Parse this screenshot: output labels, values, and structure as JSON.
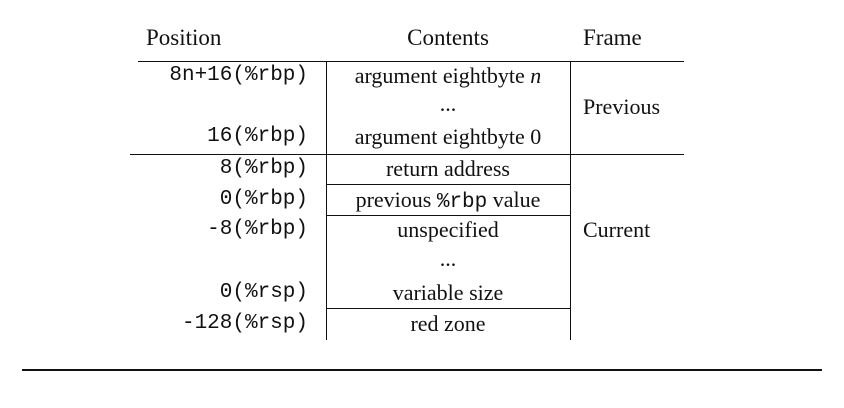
{
  "table": {
    "headers": {
      "position": "Position",
      "contents": "Contents",
      "frame": "Frame"
    },
    "previous_frame": {
      "label": "Previous",
      "rows": [
        {
          "position": "8n+16(%rbp)",
          "contents_text": "argument eightbyte ",
          "contents_var": "n"
        },
        {
          "position": "",
          "contents_text": "...",
          "contents_var": ""
        },
        {
          "position": "16(%rbp)",
          "contents_text": "argument eightbyte ",
          "contents_var": "0"
        }
      ]
    },
    "current_frame": {
      "label": "Current",
      "rows": [
        {
          "position": "8(%rbp)",
          "contents": "return address"
        },
        {
          "position": "0(%rbp)",
          "contents_prefix": "previous ",
          "contents_code": "%rbp",
          "contents_suffix": " value"
        },
        {
          "position": "-8(%rbp)",
          "contents": "unspecified"
        },
        {
          "position": "",
          "contents": "..."
        },
        {
          "position": "0(%rsp)",
          "contents": "variable size"
        },
        {
          "position": "-128(%rsp)",
          "contents": "red zone"
        }
      ]
    }
  }
}
